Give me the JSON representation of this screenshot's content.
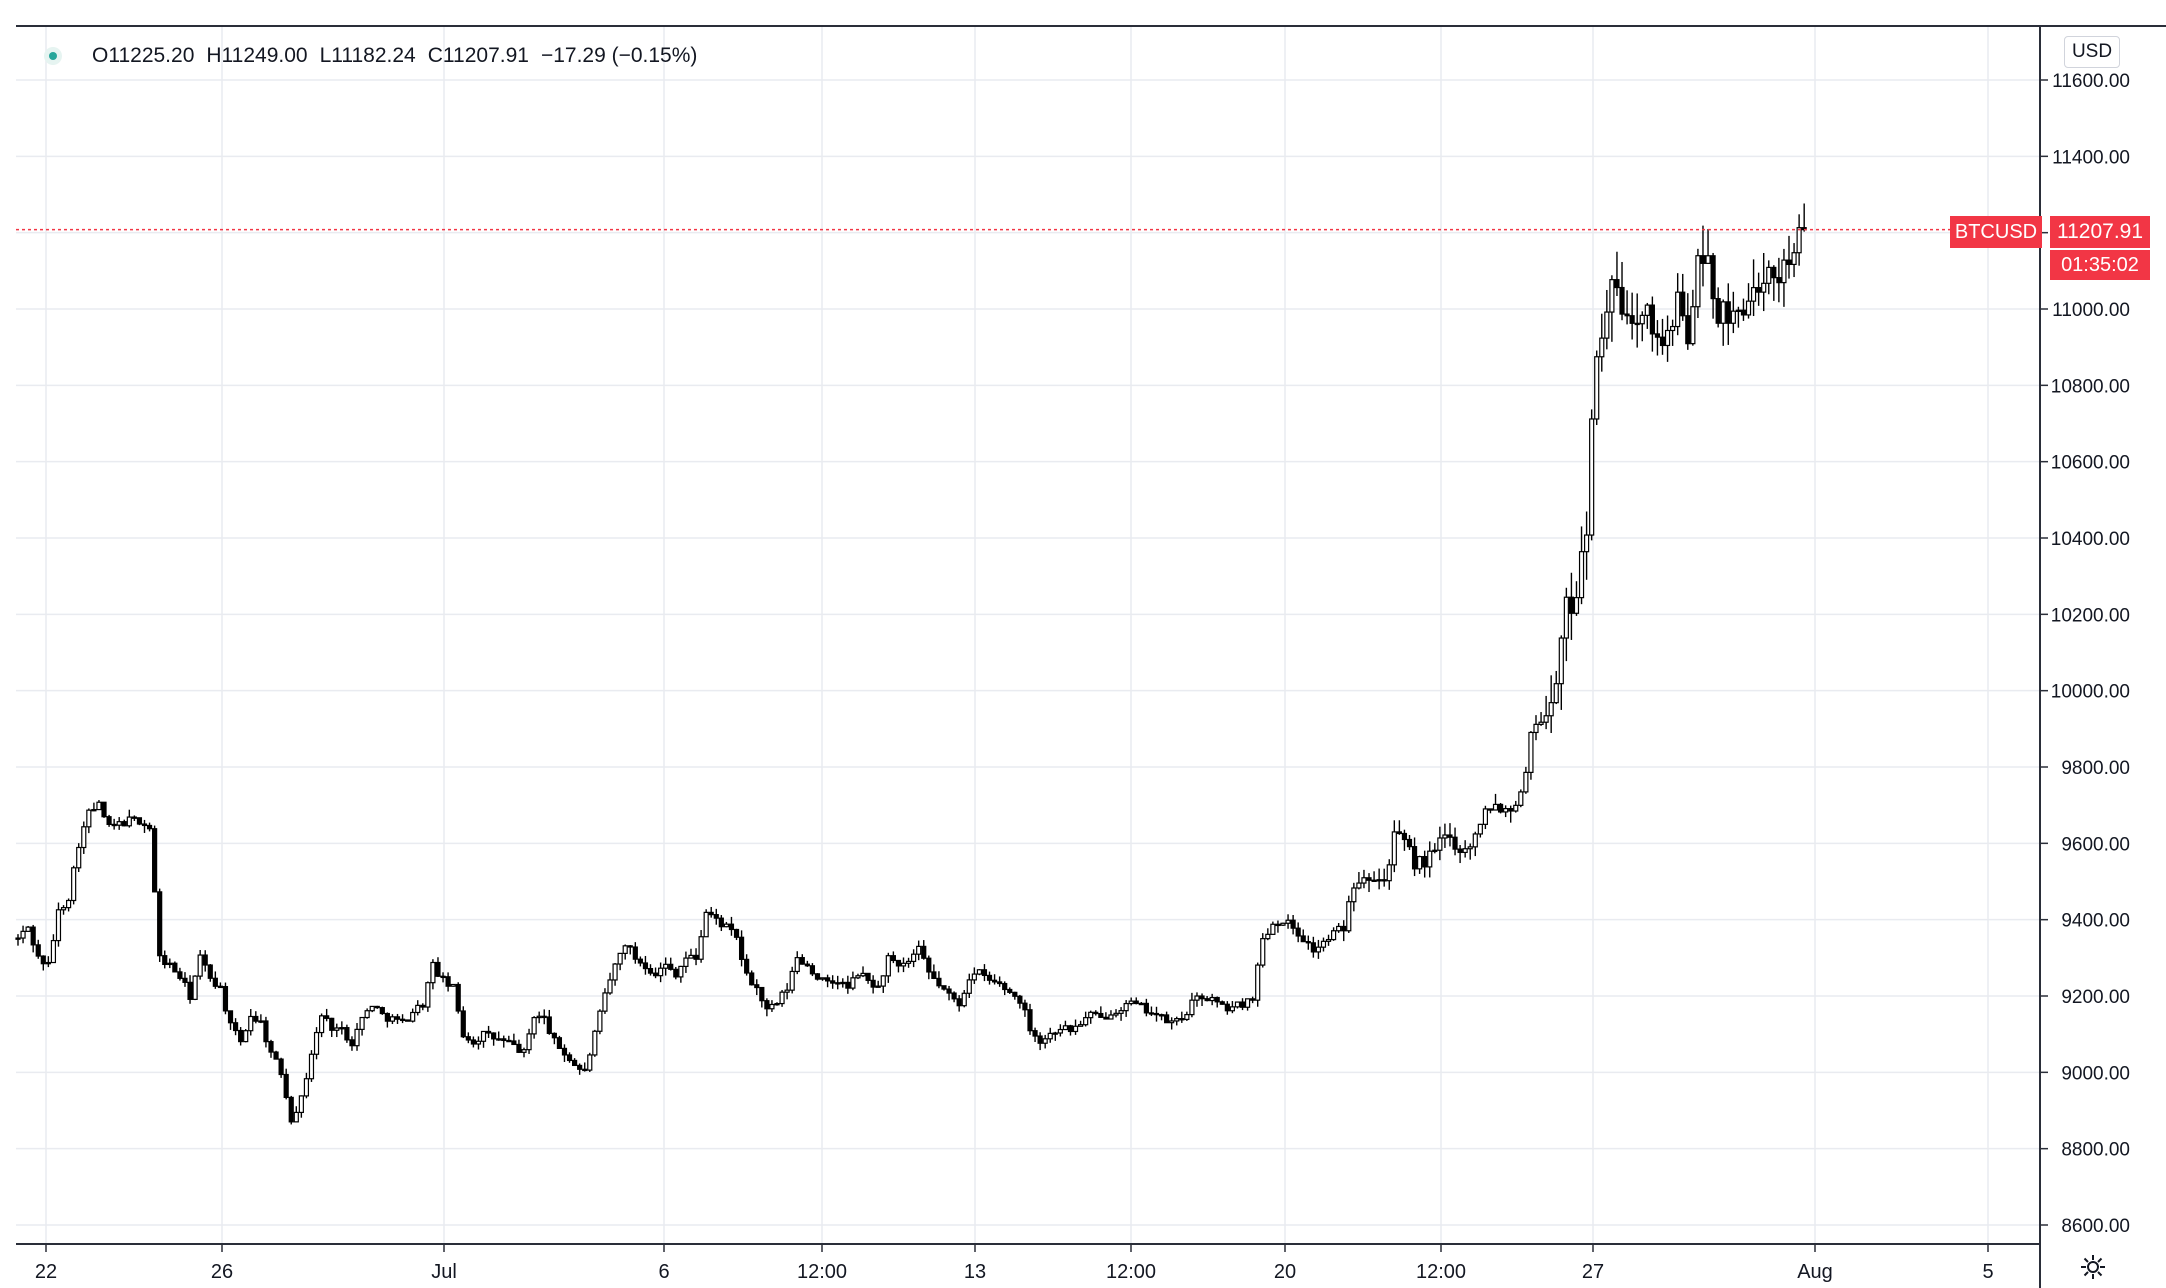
{
  "legend": {
    "open_label": "O",
    "open": "11225.20",
    "high_label": "H",
    "high": "11249.00",
    "low_label": "L",
    "low": "11182.24",
    "close_label": "C",
    "close": "11207.91",
    "change": "−17.29 (−0.15%)",
    "status_color": "#26a69a"
  },
  "currency": "USD",
  "symbol_tag": "BTCUSD",
  "price_tag": "11207.91",
  "countdown": "01:35:02",
  "accent_color": "#f23645",
  "settings_icon": "gear-icon",
  "chart_data": {
    "type": "candlestick",
    "symbol": "BTCUSD",
    "currency": "USD",
    "ylim": [
      8550,
      11700
    ],
    "y_ticks": [
      "8600.00",
      "8800.00",
      "9000.00",
      "9200.00",
      "9400.00",
      "9600.00",
      "9800.00",
      "10000.00",
      "10200.00",
      "10400.00",
      "10600.00",
      "10800.00",
      "11000.00",
      "11200.00",
      "11400.00",
      "11600.00"
    ],
    "x_ticks": [
      "22",
      "26",
      "Jul",
      "6",
      "12:00",
      "13",
      "12:00",
      "20",
      "12:00",
      "27",
      "Aug",
      "5"
    ],
    "last_price": 11207.91,
    "grid": true,
    "path": [
      [
        0,
        9350
      ],
      [
        2,
        9380
      ],
      [
        4,
        9300
      ],
      [
        6,
        9280
      ],
      [
        8,
        9420
      ],
      [
        10,
        9460
      ],
      [
        12,
        9600
      ],
      [
        14,
        9680
      ],
      [
        16,
        9700
      ],
      [
        18,
        9640
      ],
      [
        20,
        9650
      ],
      [
        22,
        9660
      ],
      [
        24,
        9660
      ],
      [
        26,
        9640
      ],
      [
        28,
        9300
      ],
      [
        30,
        9280
      ],
      [
        32,
        9250
      ],
      [
        34,
        9200
      ],
      [
        36,
        9300
      ],
      [
        38,
        9250
      ],
      [
        40,
        9220
      ],
      [
        42,
        9120
      ],
      [
        44,
        9080
      ],
      [
        46,
        9150
      ],
      [
        48,
        9130
      ],
      [
        50,
        9050
      ],
      [
        52,
        9000
      ],
      [
        54,
        8880
      ],
      [
        56,
        8930
      ],
      [
        58,
        9050
      ],
      [
        60,
        9150
      ],
      [
        62,
        9120
      ],
      [
        64,
        9110
      ],
      [
        66,
        9080
      ],
      [
        68,
        9140
      ],
      [
        70,
        9180
      ],
      [
        72,
        9150
      ],
      [
        74,
        9140
      ],
      [
        76,
        9130
      ],
      [
        78,
        9160
      ],
      [
        80,
        9180
      ],
      [
        82,
        9280
      ],
      [
        84,
        9240
      ],
      [
        86,
        9220
      ],
      [
        88,
        9100
      ],
      [
        90,
        9080
      ],
      [
        92,
        9100
      ],
      [
        94,
        9090
      ],
      [
        96,
        9080
      ],
      [
        98,
        9070
      ],
      [
        100,
        9050
      ],
      [
        102,
        9150
      ],
      [
        104,
        9140
      ],
      [
        106,
        9080
      ],
      [
        108,
        9050
      ],
      [
        110,
        9020
      ],
      [
        112,
        9000
      ],
      [
        114,
        9100
      ],
      [
        116,
        9200
      ],
      [
        118,
        9280
      ],
      [
        120,
        9340
      ],
      [
        122,
        9300
      ],
      [
        124,
        9280
      ],
      [
        126,
        9260
      ],
      [
        128,
        9280
      ],
      [
        130,
        9260
      ],
      [
        132,
        9300
      ],
      [
        134,
        9300
      ],
      [
        136,
        9420
      ],
      [
        138,
        9400
      ],
      [
        140,
        9380
      ],
      [
        142,
        9350
      ],
      [
        144,
        9250
      ],
      [
        146,
        9220
      ],
      [
        148,
        9160
      ],
      [
        150,
        9180
      ],
      [
        152,
        9220
      ],
      [
        154,
        9300
      ],
      [
        156,
        9280
      ],
      [
        158,
        9250
      ],
      [
        160,
        9230
      ],
      [
        162,
        9240
      ],
      [
        164,
        9220
      ],
      [
        166,
        9260
      ],
      [
        168,
        9240
      ],
      [
        170,
        9220
      ],
      [
        172,
        9300
      ],
      [
        174,
        9270
      ],
      [
        176,
        9290
      ],
      [
        178,
        9320
      ],
      [
        180,
        9260
      ],
      [
        182,
        9230
      ],
      [
        184,
        9200
      ],
      [
        186,
        9180
      ],
      [
        188,
        9250
      ],
      [
        190,
        9260
      ],
      [
        192,
        9240
      ],
      [
        194,
        9230
      ],
      [
        196,
        9210
      ],
      [
        198,
        9190
      ],
      [
        200,
        9120
      ],
      [
        202,
        9080
      ],
      [
        204,
        9100
      ],
      [
        206,
        9120
      ],
      [
        208,
        9110
      ],
      [
        210,
        9130
      ],
      [
        212,
        9150
      ],
      [
        214,
        9140
      ],
      [
        216,
        9160
      ],
      [
        218,
        9170
      ],
      [
        220,
        9180
      ],
      [
        222,
        9170
      ],
      [
        224,
        9160
      ],
      [
        226,
        9140
      ],
      [
        228,
        9130
      ],
      [
        230,
        9140
      ],
      [
        232,
        9180
      ],
      [
        234,
        9200
      ],
      [
        236,
        9190
      ],
      [
        238,
        9170
      ],
      [
        240,
        9170
      ],
      [
        242,
        9180
      ],
      [
        244,
        9200
      ],
      [
        246,
        9350
      ],
      [
        248,
        9390
      ],
      [
        250,
        9400
      ],
      [
        252,
        9380
      ],
      [
        254,
        9350
      ],
      [
        256,
        9320
      ],
      [
        258,
        9340
      ],
      [
        260,
        9360
      ],
      [
        262,
        9380
      ],
      [
        264,
        9500
      ],
      [
        266,
        9520
      ],
      [
        268,
        9520
      ],
      [
        270,
        9500
      ],
      [
        272,
        9620
      ],
      [
        274,
        9600
      ],
      [
        276,
        9550
      ],
      [
        278,
        9550
      ],
      [
        280,
        9580
      ],
      [
        282,
        9620
      ],
      [
        284,
        9600
      ],
      [
        286,
        9580
      ],
      [
        288,
        9620
      ],
      [
        290,
        9700
      ],
      [
        292,
        9700
      ],
      [
        294,
        9690
      ],
      [
        296,
        9700
      ],
      [
        298,
        9800
      ],
      [
        300,
        9950
      ],
      [
        302,
        9920
      ],
      [
        304,
        10050
      ],
      [
        306,
        10200
      ],
      [
        308,
        10280
      ],
      [
        310,
        10450
      ],
      [
        312,
        10900
      ],
      [
        314,
        11020
      ],
      [
        316,
        11050
      ],
      [
        318,
        10950
      ],
      [
        320,
        11000
      ],
      [
        322,
        11050
      ],
      [
        324,
        10900
      ],
      [
        326,
        10950
      ],
      [
        328,
        11000
      ],
      [
        330,
        10950
      ],
      [
        332,
        11100
      ],
      [
        334,
        11120
      ],
      [
        336,
        11000
      ],
      [
        338,
        10950
      ],
      [
        340,
        11000
      ],
      [
        342,
        11050
      ],
      [
        344,
        11000
      ],
      [
        346,
        11080
      ],
      [
        348,
        11100
      ],
      [
        350,
        11150
      ],
      [
        352,
        11190
      ],
      [
        353,
        11207.91
      ]
    ]
  }
}
